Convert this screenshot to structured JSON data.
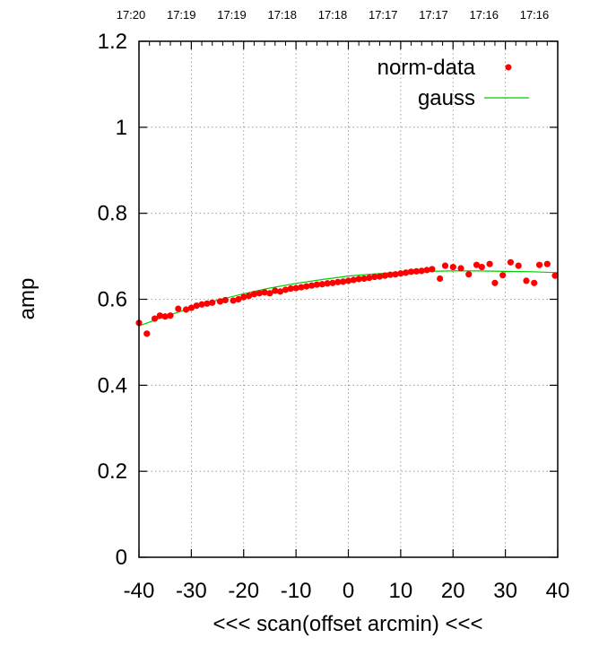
{
  "chart_data": {
    "type": "scatter",
    "xlabel": "<<< scan(offset arcmin) <<<",
    "ylabel": "amp",
    "xlim": [
      -40,
      40
    ],
    "ylim": [
      0,
      1.2
    ],
    "x_ticks": [
      "-40",
      "-30",
      "-20",
      "-10",
      "0",
      "10",
      "20",
      "30",
      "40"
    ],
    "y_ticks": [
      "0",
      "0.2",
      "0.4",
      "0.6",
      "0.8",
      "1",
      "1.2"
    ],
    "top_time_ticks": [
      "17:20",
      "17:19",
      "17:19",
      "17:18",
      "17:18",
      "17:17",
      "17:17",
      "17:16",
      "17:16"
    ],
    "grid": true,
    "legend_position": "top-right",
    "series": [
      {
        "name": "norm-data",
        "kind": "points",
        "color": "#ff0000",
        "points": [
          [
            -40,
            0.545
          ],
          [
            -38.5,
            0.52
          ],
          [
            -37,
            0.555
          ],
          [
            -36,
            0.562
          ],
          [
            -35,
            0.56
          ],
          [
            -34,
            0.562
          ],
          [
            -32.5,
            0.578
          ],
          [
            -31,
            0.576
          ],
          [
            -30,
            0.58
          ],
          [
            -29,
            0.585
          ],
          [
            -28,
            0.588
          ],
          [
            -27,
            0.59
          ],
          [
            -26,
            0.592
          ],
          [
            -24.5,
            0.595
          ],
          [
            -23.5,
            0.598
          ],
          [
            -22,
            0.597
          ],
          [
            -21,
            0.6
          ],
          [
            -20,
            0.605
          ],
          [
            -19,
            0.608
          ],
          [
            -18,
            0.612
          ],
          [
            -17,
            0.614
          ],
          [
            -16,
            0.616
          ],
          [
            -15,
            0.614
          ],
          [
            -14,
            0.62
          ],
          [
            -13,
            0.618
          ],
          [
            -12,
            0.622
          ],
          [
            -11,
            0.625
          ],
          [
            -10,
            0.626
          ],
          [
            -9,
            0.628
          ],
          [
            -8,
            0.63
          ],
          [
            -7,
            0.632
          ],
          [
            -6,
            0.634
          ],
          [
            -5,
            0.635
          ],
          [
            -4,
            0.637
          ],
          [
            -3,
            0.638
          ],
          [
            -2,
            0.64
          ],
          [
            -1,
            0.641
          ],
          [
            0,
            0.643
          ],
          [
            1,
            0.645
          ],
          [
            2,
            0.647
          ],
          [
            3,
            0.648
          ],
          [
            4,
            0.65
          ],
          [
            5,
            0.652
          ],
          [
            6,
            0.653
          ],
          [
            7,
            0.655
          ],
          [
            8,
            0.657
          ],
          [
            9,
            0.658
          ],
          [
            10,
            0.66
          ],
          [
            11,
            0.662
          ],
          [
            12,
            0.664
          ],
          [
            13,
            0.665
          ],
          [
            14,
            0.666
          ],
          [
            15,
            0.668
          ],
          [
            16,
            0.67
          ],
          [
            17.5,
            0.648
          ],
          [
            18.5,
            0.678
          ],
          [
            20,
            0.675
          ],
          [
            21.5,
            0.672
          ],
          [
            23,
            0.658
          ],
          [
            24.5,
            0.68
          ],
          [
            25.5,
            0.675
          ],
          [
            27,
            0.682
          ],
          [
            28,
            0.638
          ],
          [
            29.5,
            0.656
          ],
          [
            31,
            0.686
          ],
          [
            32.5,
            0.678
          ],
          [
            34,
            0.643
          ],
          [
            35.5,
            0.638
          ],
          [
            36.5,
            0.68
          ],
          [
            38,
            0.682
          ],
          [
            39.5,
            0.655
          ]
        ]
      },
      {
        "name": "gauss",
        "kind": "line",
        "color": "#00cc00",
        "points": [
          [
            -40,
            0.538
          ],
          [
            -35,
            0.56
          ],
          [
            -30,
            0.58
          ],
          [
            -25,
            0.598
          ],
          [
            -20,
            0.613
          ],
          [
            -15,
            0.626
          ],
          [
            -10,
            0.637
          ],
          [
            -5,
            0.646
          ],
          [
            0,
            0.654
          ],
          [
            5,
            0.659
          ],
          [
            10,
            0.663
          ],
          [
            15,
            0.665
          ],
          [
            20,
            0.666
          ],
          [
            25,
            0.666
          ],
          [
            30,
            0.665
          ],
          [
            35,
            0.664
          ],
          [
            40,
            0.662
          ]
        ]
      }
    ]
  }
}
